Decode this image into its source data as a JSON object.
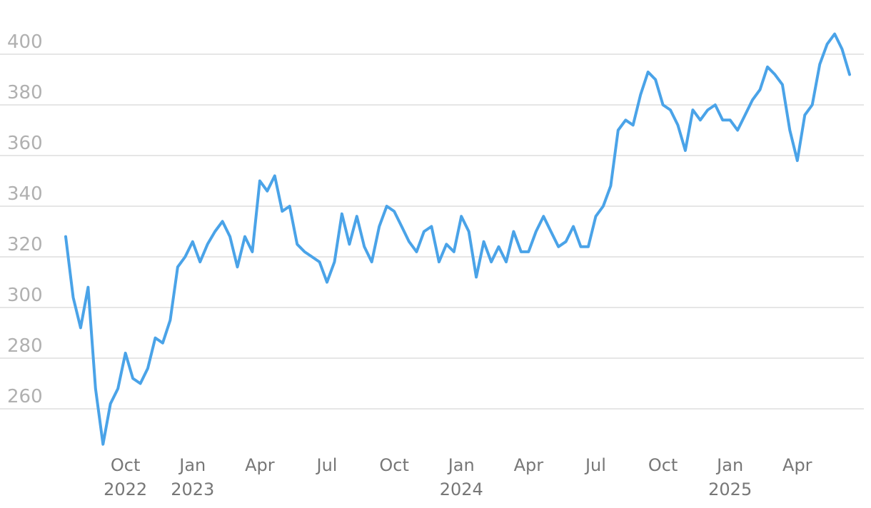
{
  "chart_data": {
    "type": "line",
    "color": "#4aa3e8",
    "grid": true,
    "x": [
      "2022-07",
      "2022-07",
      "2022-08",
      "2022-08",
      "2022-08",
      "2022-09",
      "2022-09",
      "2022-09",
      "2022-10",
      "2022-10",
      "2022-10",
      "2022-11",
      "2022-11",
      "2022-11",
      "2022-12",
      "2022-12",
      "2022-12",
      "2023-01",
      "2023-01",
      "2023-01",
      "2023-02",
      "2023-02",
      "2023-02",
      "2023-03",
      "2023-03",
      "2023-03",
      "2023-04",
      "2023-04",
      "2023-04",
      "2023-05",
      "2023-05",
      "2023-05",
      "2023-06",
      "2023-06",
      "2023-06",
      "2023-07",
      "2023-07",
      "2023-07",
      "2023-08",
      "2023-08",
      "2023-08",
      "2023-09",
      "2023-09",
      "2023-09",
      "2023-10",
      "2023-10",
      "2023-10",
      "2023-11",
      "2023-11",
      "2023-11",
      "2023-12",
      "2023-12",
      "2023-12",
      "2024-01",
      "2024-01",
      "2024-01",
      "2024-02",
      "2024-02",
      "2024-02",
      "2024-03",
      "2024-03",
      "2024-03",
      "2024-04",
      "2024-04",
      "2024-04",
      "2024-05",
      "2024-05",
      "2024-05",
      "2024-06",
      "2024-06",
      "2024-06",
      "2024-07",
      "2024-07",
      "2024-07",
      "2024-08",
      "2024-08",
      "2024-08",
      "2024-09",
      "2024-09",
      "2024-09",
      "2024-10",
      "2024-10",
      "2024-10",
      "2024-11",
      "2024-11",
      "2024-11",
      "2024-12",
      "2024-12",
      "2024-12",
      "2025-01",
      "2025-01",
      "2025-01",
      "2025-02",
      "2025-02",
      "2025-02",
      "2025-03",
      "2025-03",
      "2025-03",
      "2025-04",
      "2025-04",
      "2025-04",
      "2025-05",
      "2025-05",
      "2025-05",
      "2025-06",
      "2025-06"
    ],
    "values": [
      328,
      304,
      292,
      308,
      268,
      246,
      262,
      268,
      282,
      272,
      270,
      276,
      288,
      286,
      295,
      316,
      320,
      326,
      318,
      325,
      330,
      334,
      328,
      316,
      328,
      322,
      350,
      346,
      352,
      338,
      340,
      325,
      322,
      320,
      318,
      310,
      318,
      337,
      325,
      336,
      324,
      318,
      332,
      340,
      338,
      332,
      326,
      322,
      330,
      332,
      318,
      325,
      322,
      336,
      330,
      312,
      326,
      318,
      324,
      318,
      330,
      322,
      322,
      330,
      336,
      330,
      324,
      326,
      332,
      324,
      324,
      336,
      340,
      348,
      370,
      374,
      372,
      384,
      393,
      390,
      380,
      378,
      372,
      362,
      378,
      374,
      378,
      380,
      374,
      374,
      370,
      376,
      382,
      386,
      395,
      392,
      388,
      370,
      358,
      376,
      380,
      396,
      404,
      408,
      402,
      392
    ],
    "ylim": [
      240,
      420
    ],
    "yticks": [
      260,
      280,
      300,
      320,
      340,
      360,
      380,
      400
    ],
    "xticks": [
      {
        "value": "2022-10",
        "label": "Oct",
        "year": "2022"
      },
      {
        "value": "2023-01",
        "label": "Jan",
        "year": "2023"
      },
      {
        "value": "2023-04",
        "label": "Apr"
      },
      {
        "value": "2023-07",
        "label": "Jul"
      },
      {
        "value": "2023-10",
        "label": "Oct"
      },
      {
        "value": "2024-01",
        "label": "Jan",
        "year": "2024"
      },
      {
        "value": "2024-04",
        "label": "Apr"
      },
      {
        "value": "2024-07",
        "label": "Jul"
      },
      {
        "value": "2024-10",
        "label": "Oct"
      },
      {
        "value": "2025-01",
        "label": "Jan",
        "year": "2025"
      },
      {
        "value": "2025-04",
        "label": "Apr"
      }
    ]
  }
}
